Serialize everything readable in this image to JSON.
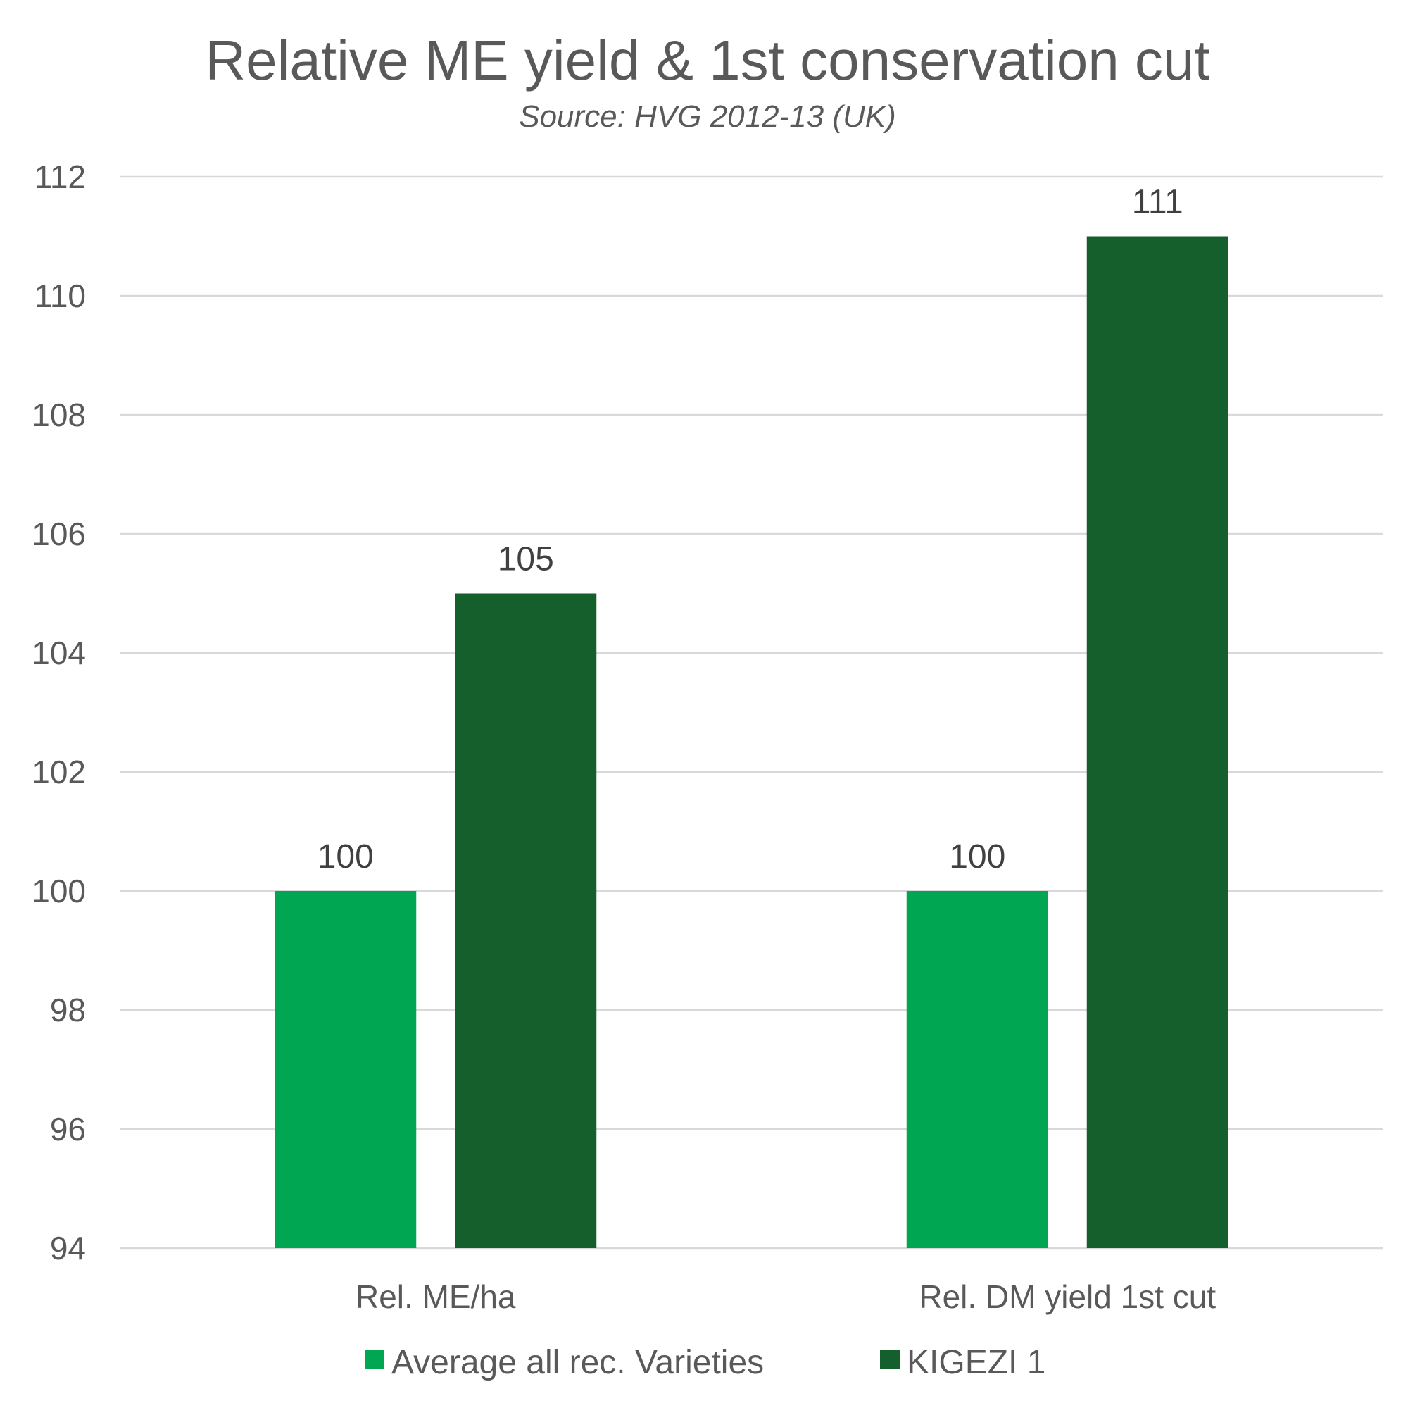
{
  "chart_data": {
    "type": "bar",
    "title": "Relative ME yield & 1st conservation cut",
    "subtitle": "Source: HVG 2012-13 (UK)",
    "categories": [
      "Rel. ME/ha",
      "Rel. DM yield 1st cut"
    ],
    "series": [
      {
        "name": "Average all rec. Varieties",
        "values": [
          100,
          100
        ],
        "color": "#00a651"
      },
      {
        "name": "KIGEZI 1",
        "values": [
          105,
          111
        ],
        "color": "#155f2d"
      }
    ],
    "ylim": [
      94,
      112
    ],
    "yticks": [
      94,
      96,
      98,
      100,
      102,
      104,
      106,
      108,
      110,
      112
    ],
    "grid": true,
    "legend": "bottom"
  }
}
